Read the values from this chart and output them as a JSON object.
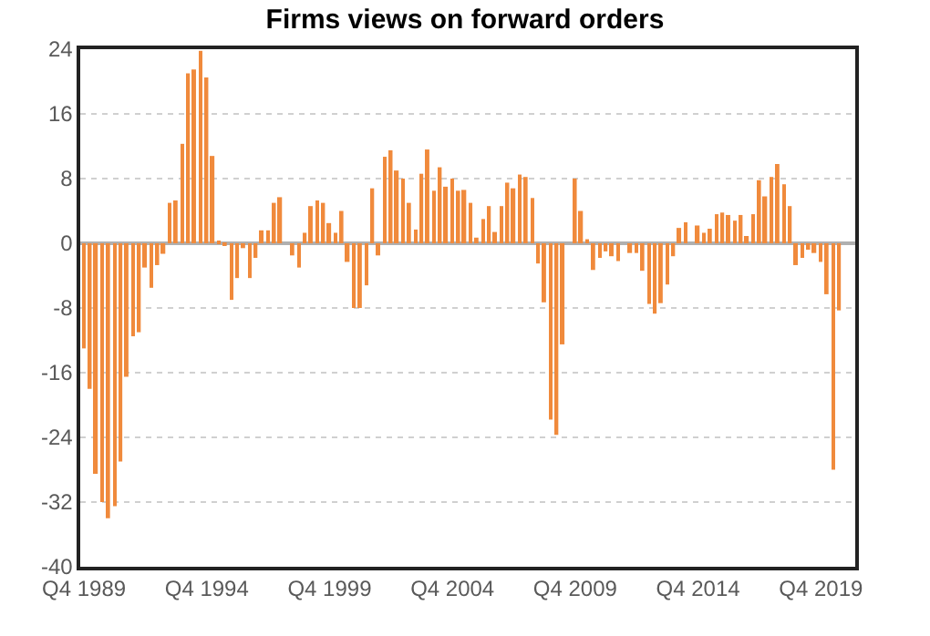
{
  "chart_data": {
    "type": "bar",
    "title": "Firms views on forward orders",
    "categories": [
      "Q4 1989",
      null,
      null,
      null,
      null,
      null,
      null,
      null,
      null,
      null,
      null,
      null,
      null,
      null,
      null,
      null,
      null,
      null,
      null,
      null,
      "Q4 1994",
      null,
      null,
      null,
      null,
      null,
      null,
      null,
      null,
      null,
      null,
      null,
      null,
      null,
      null,
      null,
      null,
      null,
      null,
      null,
      "Q4 1999",
      null,
      null,
      null,
      null,
      null,
      null,
      null,
      null,
      null,
      null,
      null,
      null,
      null,
      null,
      null,
      null,
      null,
      null,
      null,
      "Q4 2004",
      null,
      null,
      null,
      null,
      null,
      null,
      null,
      null,
      null,
      null,
      null,
      null,
      null,
      null,
      null,
      null,
      null,
      null,
      null,
      "Q4 2009",
      null,
      null,
      null,
      null,
      null,
      null,
      null,
      null,
      null,
      null,
      null,
      null,
      null,
      null,
      null,
      null,
      null,
      null,
      null,
      "Q4 2014",
      null,
      null,
      null,
      null,
      null,
      null,
      null,
      null,
      null,
      null,
      null,
      null,
      null,
      null,
      null,
      null,
      null,
      null,
      null,
      "Q4 2019",
      null,
      null,
      null
    ],
    "values": [
      -13,
      -18,
      -28.5,
      -32,
      -34,
      -32.5,
      -27,
      -16.5,
      -11.5,
      -11,
      -3,
      -5.5,
      -2.7,
      -1.3,
      5,
      5.3,
      12.3,
      21,
      21.5,
      23.8,
      20.5,
      10.8,
      0.3,
      -0.3,
      -7,
      -4.3,
      -0.6,
      -4.3,
      -1.8,
      1.6,
      1.6,
      5,
      5.7,
      0,
      -1.5,
      -3,
      1.3,
      4.6,
      5.3,
      5,
      2.5,
      1.3,
      4,
      -2.3,
      -8,
      -8,
      -5.2,
      6.8,
      -1.5,
      10.7,
      11.5,
      9,
      8,
      5,
      1.7,
      8.6,
      11.6,
      6.5,
      9.4,
      7,
      8,
      6.5,
      6.6,
      5,
      0.7,
      3,
      4.6,
      1.4,
      4.6,
      7.5,
      6.8,
      8.5,
      8.2,
      5.6,
      -2.5,
      -7.3,
      -21.8,
      -23.7,
      -12.5,
      0,
      8,
      4,
      0.5,
      -3.3,
      -1.8,
      -1,
      -1.6,
      -2.2,
      0,
      -1.2,
      -1.2,
      -3.4,
      -7.5,
      -8.7,
      -7.4,
      -5.1,
      -1.6,
      1.9,
      2.6,
      0,
      2.2,
      1.3,
      1.8,
      3.6,
      3.8,
      3.5,
      2.8,
      3.5,
      0.9,
      3.6,
      7.8,
      5.8,
      8.2,
      9.8,
      7.3,
      4.6,
      -2.7,
      -1.8,
      -0.8,
      -1.2,
      -2.3,
      -6.3,
      -28,
      -8.3
    ],
    "color": "#f08a3c",
    "ylim": [
      -40,
      24
    ],
    "yticks": [
      -40,
      -32,
      -24,
      -16,
      -8,
      0,
      8,
      16,
      24
    ],
    "grid": "y"
  }
}
